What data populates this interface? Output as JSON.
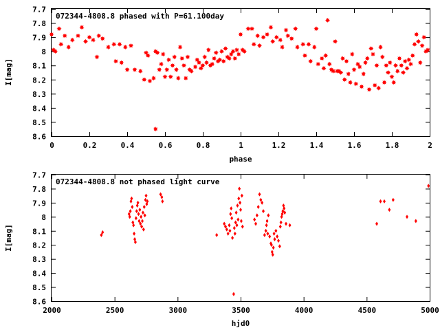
{
  "colors": {
    "points": "#ff0000",
    "axes": "#000000",
    "background": "#ffffff"
  },
  "chart_data": [
    {
      "type": "scatter",
      "title": "072344-4808.8 phased with P=61.100day",
      "xlabel": "phase",
      "ylabel": "I[mag]",
      "xlim": [
        0,
        2
      ],
      "ylim": [
        8.6,
        7.7
      ],
      "y_inverted": true,
      "grid": false,
      "marker": "star",
      "x_ticks": [
        "0",
        "0.2",
        "0.4",
        "0.6",
        "0.8",
        "1",
        "1.2",
        "1.4",
        "1.6",
        "1.8",
        "2"
      ],
      "y_ticks": [
        "7.7",
        "7.8",
        "7.9",
        "8",
        "8.1",
        "8.2",
        "8.3",
        "8.4",
        "8.5",
        "8.6"
      ],
      "series": [
        {
          "points": [
            [
              0.0,
              7.88
            ],
            [
              0.01,
              7.99
            ],
            [
              0.02,
              8.0
            ],
            [
              0.04,
              7.84
            ],
            [
              0.05,
              7.95
            ],
            [
              0.07,
              7.89
            ],
            [
              0.09,
              7.97
            ],
            [
              0.11,
              7.92
            ],
            [
              0.14,
              7.89
            ],
            [
              0.16,
              7.83
            ],
            [
              0.18,
              7.93
            ],
            [
              0.2,
              7.9
            ],
            [
              0.22,
              7.92
            ],
            [
              0.24,
              8.04
            ],
            [
              0.25,
              7.89
            ],
            [
              0.27,
              7.91
            ],
            [
              0.3,
              7.97
            ],
            [
              0.33,
              7.95
            ],
            [
              0.34,
              8.07
            ],
            [
              0.36,
              7.95
            ],
            [
              0.37,
              8.08
            ],
            [
              0.39,
              7.97
            ],
            [
              0.4,
              8.13
            ],
            [
              0.42,
              7.96
            ],
            [
              0.44,
              8.13
            ],
            [
              0.47,
              8.14
            ],
            [
              0.49,
              8.2
            ],
            [
              0.5,
              8.01
            ],
            [
              0.51,
              8.03
            ],
            [
              0.52,
              8.21
            ],
            [
              0.54,
              8.19
            ],
            [
              0.55,
              8.55
            ],
            [
              0.55,
              8.0
            ],
            [
              0.56,
              8.01
            ],
            [
              0.57,
              8.13
            ],
            [
              0.58,
              8.09
            ],
            [
              0.59,
              8.02
            ],
            [
              0.6,
              8.18
            ],
            [
              0.61,
              8.13
            ],
            [
              0.62,
              8.06
            ],
            [
              0.63,
              8.18
            ],
            [
              0.64,
              8.1
            ],
            [
              0.65,
              8.04
            ],
            [
              0.66,
              8.13
            ],
            [
              0.67,
              8.19
            ],
            [
              0.68,
              7.97
            ],
            [
              0.69,
              8.05
            ],
            [
              0.7,
              8.1
            ],
            [
              0.71,
              8.19
            ],
            [
              0.72,
              8.04
            ],
            [
              0.73,
              8.13
            ],
            [
              0.74,
              8.14
            ],
            [
              0.76,
              8.11
            ],
            [
              0.77,
              8.06
            ],
            [
              0.78,
              8.08
            ],
            [
              0.79,
              8.12
            ],
            [
              0.8,
              8.1
            ],
            [
              0.81,
              8.04
            ],
            [
              0.82,
              8.08
            ],
            [
              0.83,
              7.99
            ],
            [
              0.84,
              8.1
            ],
            [
              0.85,
              8.09
            ],
            [
              0.86,
              8.05
            ],
            [
              0.87,
              8.01
            ],
            [
              0.88,
              8.07
            ],
            [
              0.89,
              8.06
            ],
            [
              0.9,
              8.0
            ],
            [
              0.91,
              8.07
            ],
            [
              0.92,
              7.98
            ],
            [
              0.93,
              8.04
            ],
            [
              0.94,
              8.05
            ],
            [
              0.95,
              8.02
            ],
            [
              0.96,
              8.0
            ],
            [
              0.97,
              8.05
            ],
            [
              0.98,
              7.99
            ],
            [
              0.99,
              8.02
            ],
            [
              1.0,
              7.88
            ],
            [
              1.01,
              7.99
            ],
            [
              1.02,
              8.0
            ],
            [
              1.04,
              7.84
            ],
            [
              1.06,
              7.84
            ],
            [
              1.07,
              7.95
            ],
            [
              1.09,
              7.89
            ],
            [
              1.1,
              7.96
            ],
            [
              1.12,
              7.9
            ],
            [
              1.14,
              7.88
            ],
            [
              1.16,
              7.83
            ],
            [
              1.17,
              7.93
            ],
            [
              1.19,
              7.9
            ],
            [
              1.21,
              7.92
            ],
            [
              1.22,
              7.97
            ],
            [
              1.24,
              7.85
            ],
            [
              1.25,
              7.89
            ],
            [
              1.27,
              7.91
            ],
            [
              1.29,
              7.84
            ],
            [
              1.3,
              7.97
            ],
            [
              1.33,
              7.95
            ],
            [
              1.34,
              8.03
            ],
            [
              1.36,
              7.95
            ],
            [
              1.37,
              8.07
            ],
            [
              1.39,
              7.97
            ],
            [
              1.4,
              7.84
            ],
            [
              1.41,
              8.09
            ],
            [
              1.43,
              8.05
            ],
            [
              1.44,
              8.12
            ],
            [
              1.45,
              8.03
            ],
            [
              1.46,
              7.78
            ],
            [
              1.47,
              8.09
            ],
            [
              1.48,
              8.13
            ],
            [
              1.49,
              8.14
            ],
            [
              1.5,
              7.93
            ],
            [
              1.51,
              8.14
            ],
            [
              1.52,
              8.14
            ],
            [
              1.53,
              8.15
            ],
            [
              1.54,
              8.05
            ],
            [
              1.55,
              8.2
            ],
            [
              1.56,
              8.07
            ],
            [
              1.57,
              8.16
            ],
            [
              1.58,
              8.22
            ],
            [
              1.59,
              8.02
            ],
            [
              1.6,
              8.13
            ],
            [
              1.61,
              8.23
            ],
            [
              1.62,
              8.09
            ],
            [
              1.63,
              8.11
            ],
            [
              1.64,
              8.25
            ],
            [
              1.65,
              8.16
            ],
            [
              1.66,
              8.08
            ],
            [
              1.67,
              8.05
            ],
            [
              1.68,
              8.27
            ],
            [
              1.69,
              7.98
            ],
            [
              1.7,
              8.02
            ],
            [
              1.71,
              8.24
            ],
            [
              1.72,
              8.1
            ],
            [
              1.73,
              8.26
            ],
            [
              1.74,
              7.97
            ],
            [
              1.75,
              8.04
            ],
            [
              1.76,
              8.22
            ],
            [
              1.77,
              8.1
            ],
            [
              1.78,
              8.15
            ],
            [
              1.79,
              8.08
            ],
            [
              1.8,
              8.18
            ],
            [
              1.81,
              8.22
            ],
            [
              1.82,
              8.1
            ],
            [
              1.83,
              8.14
            ],
            [
              1.84,
              8.05
            ],
            [
              1.85,
              8.1
            ],
            [
              1.86,
              8.15
            ],
            [
              1.87,
              8.07
            ],
            [
              1.88,
              8.12
            ],
            [
              1.89,
              8.06
            ],
            [
              1.9,
              8.09
            ],
            [
              1.91,
              8.03
            ],
            [
              1.92,
              7.95
            ],
            [
              1.93,
              7.88
            ],
            [
              1.94,
              7.93
            ],
            [
              1.95,
              8.08
            ],
            [
              1.96,
              7.96
            ],
            [
              1.97,
              7.9
            ],
            [
              1.98,
              8.0
            ],
            [
              1.99,
              7.99
            ]
          ]
        }
      ]
    },
    {
      "type": "scatter",
      "title": "072344-4808.8 not phased light curve",
      "xlabel": "hjd0",
      "ylabel": "I[mag]",
      "xlim": [
        2000,
        5000
      ],
      "ylim": [
        8.6,
        7.7
      ],
      "y_inverted": true,
      "grid": false,
      "marker": "diamond",
      "x_ticks": [
        "2000",
        "2500",
        "3000",
        "3500",
        "4000",
        "4500",
        "5000"
      ],
      "y_ticks": [
        "7.7",
        "7.8",
        "7.9",
        "8",
        "8.1",
        "8.2",
        "8.3",
        "8.4",
        "8.5",
        "8.6"
      ],
      "series": [
        {
          "points": [
            [
              2395,
              8.13
            ],
            [
              2405,
              8.11
            ],
            [
              2615,
              7.98
            ],
            [
              2620,
              8.0
            ],
            [
              2625,
              7.96
            ],
            [
              2630,
              7.89
            ],
            [
              2635,
              7.87
            ],
            [
              2640,
              7.93
            ],
            [
              2645,
              8.04
            ],
            [
              2650,
              8.06
            ],
            [
              2655,
              8.12
            ],
            [
              2660,
              8.16
            ],
            [
              2665,
              8.18
            ],
            [
              2670,
              8.01
            ],
            [
              2675,
              7.96
            ],
            [
              2680,
              7.92
            ],
            [
              2685,
              7.9
            ],
            [
              2690,
              7.98
            ],
            [
              2695,
              8.03
            ],
            [
              2700,
              7.95
            ],
            [
              2705,
              8.05
            ],
            [
              2710,
              8.0
            ],
            [
              2715,
              8.07
            ],
            [
              2720,
              8.03
            ],
            [
              2725,
              7.97
            ],
            [
              2730,
              8.09
            ],
            [
              2735,
              7.93
            ],
            [
              2740,
              7.99
            ],
            [
              2745,
              7.88
            ],
            [
              2750,
              7.85
            ],
            [
              2755,
              7.91
            ],
            [
              2760,
              7.89
            ],
            [
              2865,
              7.84
            ],
            [
              2875,
              7.86
            ],
            [
              2880,
              7.89
            ],
            [
              3310,
              8.13
            ],
            [
              3370,
              8.05
            ],
            [
              3380,
              8.07
            ],
            [
              3390,
              8.09
            ],
            [
              3400,
              8.12
            ],
            [
              3410,
              8.06
            ],
            [
              3415,
              8.1
            ],
            [
              3420,
              7.98
            ],
            [
              3425,
              7.94
            ],
            [
              3430,
              8.01
            ],
            [
              3435,
              8.15
            ],
            [
              3445,
              8.55
            ],
            [
              3450,
              8.08
            ],
            [
              3455,
              8.12
            ],
            [
              3460,
              8.04
            ],
            [
              3465,
              7.97
            ],
            [
              3470,
              8.06
            ],
            [
              3475,
              7.92
            ],
            [
              3480,
              8.02
            ],
            [
              3485,
              7.87
            ],
            [
              3490,
              7.8
            ],
            [
              3495,
              7.9
            ],
            [
              3500,
              7.95
            ],
            [
              3505,
              8.03
            ],
            [
              3510,
              7.85
            ],
            [
              3515,
              8.07
            ],
            [
              3610,
              8.02
            ],
            [
              3620,
              8.05
            ],
            [
              3630,
              7.99
            ],
            [
              3640,
              7.93
            ],
            [
              3650,
              7.84
            ],
            [
              3660,
              7.88
            ],
            [
              3670,
              7.9
            ],
            [
              3680,
              7.96
            ],
            [
              3690,
              8.13
            ],
            [
              3700,
              8.1
            ],
            [
              3705,
              8.06
            ],
            [
              3710,
              8.03
            ],
            [
              3715,
              8.12
            ],
            [
              3720,
              7.99
            ],
            [
              3730,
              8.14
            ],
            [
              3740,
              8.19
            ],
            [
              3745,
              8.2
            ],
            [
              3750,
              8.25
            ],
            [
              3755,
              8.27
            ],
            [
              3760,
              8.22
            ],
            [
              3765,
              8.12
            ],
            [
              3770,
              8.16
            ],
            [
              3780,
              8.1
            ],
            [
              3790,
              8.14
            ],
            [
              3800,
              8.17
            ],
            [
              3810,
              8.21
            ],
            [
              3815,
              8.07
            ],
            [
              3820,
              8.04
            ],
            [
              3825,
              8.0
            ],
            [
              3830,
              7.98
            ],
            [
              3835,
              7.96
            ],
            [
              3840,
              7.92
            ],
            [
              3845,
              7.94
            ],
            [
              3850,
              7.97
            ],
            [
              3860,
              8.05
            ],
            [
              3890,
              8.06
            ],
            [
              4580,
              8.05
            ],
            [
              4610,
              7.89
            ],
            [
              4640,
              7.89
            ],
            [
              4680,
              7.95
            ],
            [
              4710,
              7.88
            ],
            [
              4820,
              8.0
            ],
            [
              4890,
              8.03
            ],
            [
              4990,
              7.78
            ]
          ]
        }
      ]
    }
  ]
}
